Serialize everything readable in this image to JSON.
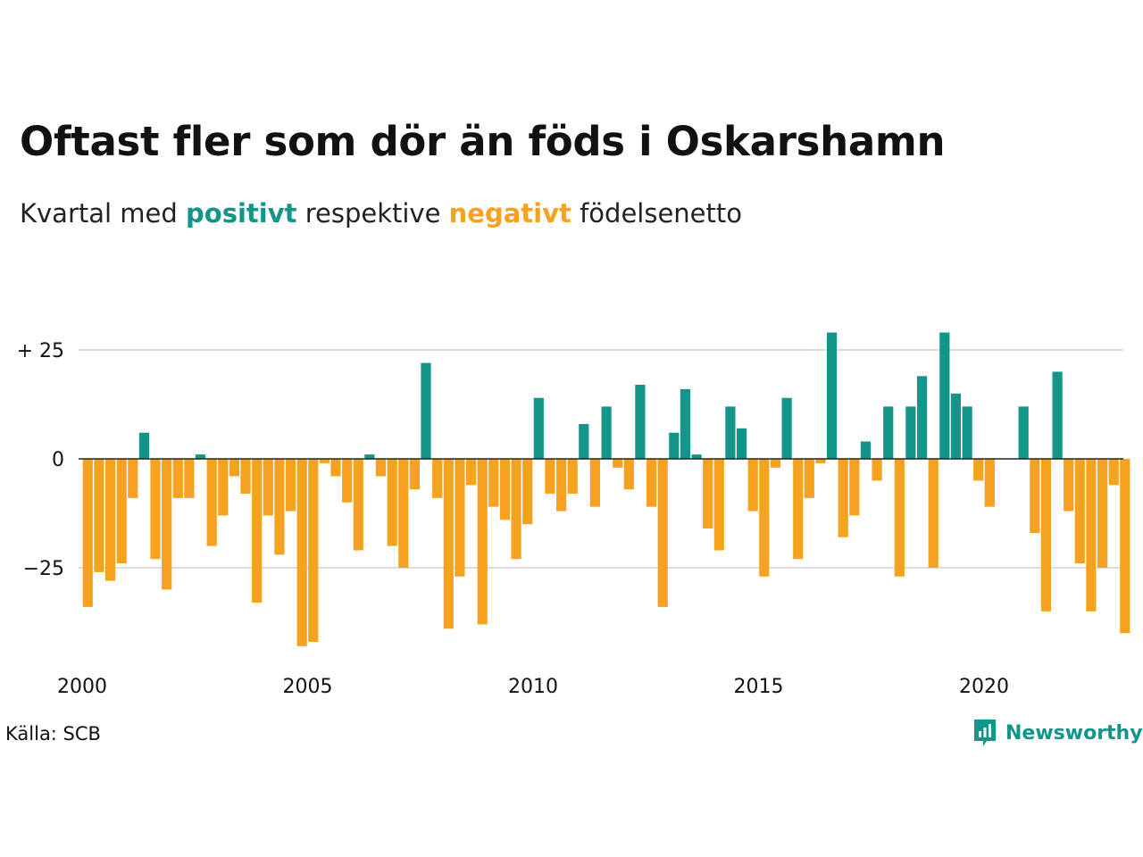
{
  "title": "Oftast fler som dör än föds i Oskarshamn",
  "subtitle": {
    "prefix": "Kvartal med",
    "positive_word": "positivt",
    "middle": "respektive",
    "negative_word": "negativt",
    "suffix": "födelsenetto"
  },
  "source": "Källa: SCB",
  "brand": "Newsworthy",
  "colors": {
    "positive": "#14958a",
    "negative": "#f4a21f",
    "grid": "#dddddd",
    "zero": "#222222"
  },
  "chart_data": {
    "type": "bar",
    "xlim": [
      2000,
      2023.25
    ],
    "ylim": [
      -45,
      30
    ],
    "grid": "horizontal",
    "y_ticks": [
      {
        "value": 25,
        "label": "+ 25"
      },
      {
        "value": 0,
        "label": "0"
      },
      {
        "value": -25,
        "label": "−25"
      }
    ],
    "x_ticks": [
      {
        "value": 2000,
        "label": "2000"
      },
      {
        "value": 2005,
        "label": "2005"
      },
      {
        "value": 2010,
        "label": "2010"
      },
      {
        "value": 2015,
        "label": "2015"
      },
      {
        "value": 2020,
        "label": "2020"
      }
    ],
    "start_year": 2000,
    "values": [
      -34,
      -26,
      -28,
      -24,
      -9,
      6,
      -23,
      -30,
      -9,
      -9,
      1,
      -20,
      -13,
      -4,
      -8,
      -33,
      -13,
      -22,
      -12,
      -43,
      -42,
      -1,
      -4,
      -10,
      -21,
      1,
      -4,
      -20,
      -25,
      -7,
      22,
      -9,
      -39,
      -27,
      -6,
      -38,
      -11,
      -14,
      -23,
      -15,
      14,
      -8,
      -12,
      -8,
      8,
      -11,
      12,
      -2,
      -7,
      17,
      -11,
      -34,
      6,
      16,
      1,
      -16,
      -21,
      12,
      7,
      -12,
      -27,
      -2,
      14,
      -23,
      -9,
      -1,
      29,
      -18,
      -13,
      4,
      -5,
      12,
      -27,
      12,
      19,
      -25,
      29,
      15,
      12,
      -5,
      -11,
      0,
      0,
      12,
      -17,
      -35,
      20,
      -12,
      -24,
      -35,
      -25,
      -6,
      -40
    ]
  }
}
